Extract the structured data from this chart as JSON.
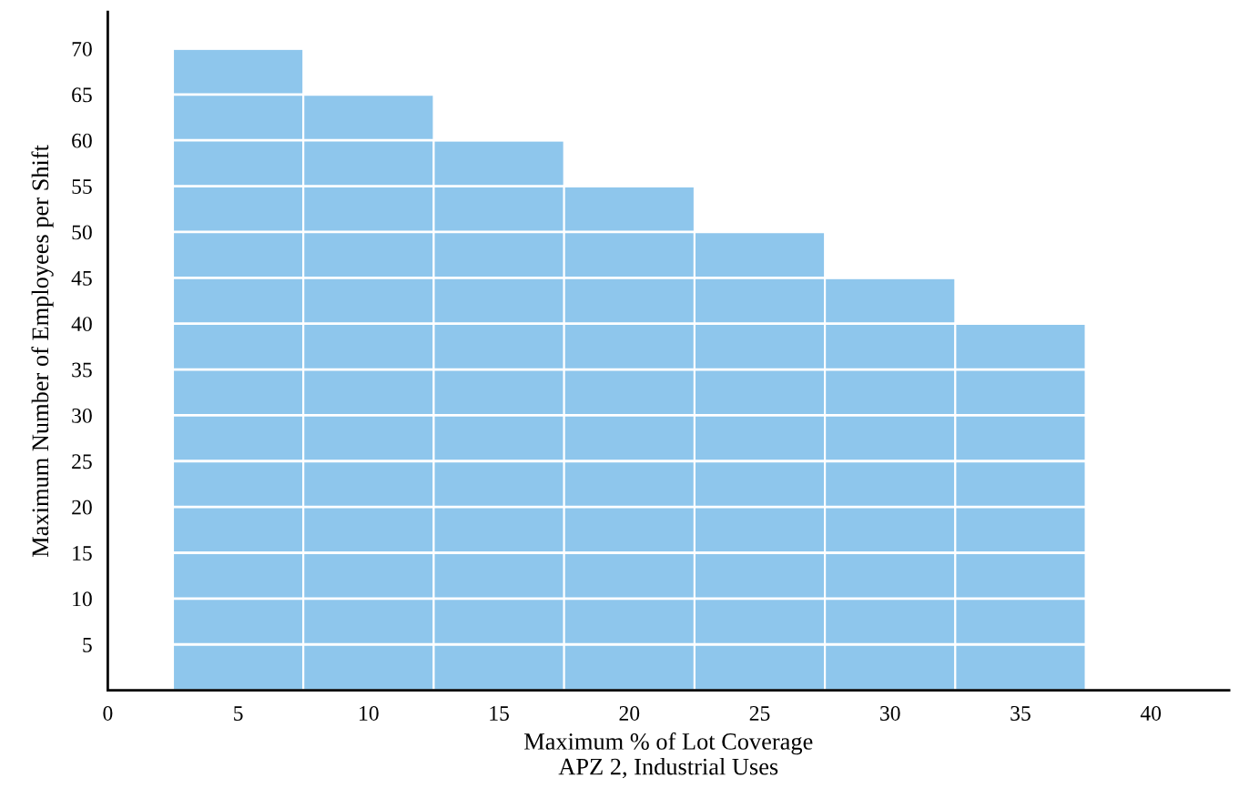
{
  "chart_data": {
    "type": "bar",
    "xlabel": "Maximum % of Lot Coverage\nAPZ 2, Industrial Uses",
    "ylabel": "Maximum Number of Employees per Shift",
    "x": [
      5,
      10,
      15,
      20,
      25,
      30,
      35
    ],
    "values": [
      70,
      65,
      60,
      55,
      50,
      45,
      40
    ],
    "color": "#8ec6ec",
    "xlim": [
      0,
      43
    ],
    "xticks": [
      0,
      5,
      10,
      15,
      20,
      25,
      30,
      35,
      40
    ],
    "ylim": [
      0,
      74
    ],
    "yticks": [
      5,
      10,
      15,
      20,
      25,
      30,
      35,
      40,
      45,
      50,
      55,
      60,
      65,
      70
    ],
    "grid": "y"
  }
}
